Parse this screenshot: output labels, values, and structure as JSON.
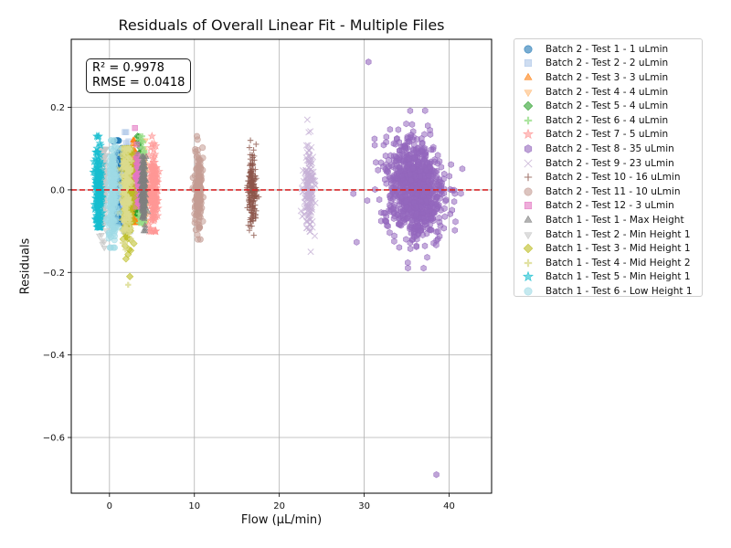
{
  "chart_data": {
    "type": "scatter",
    "title": "Residuals of Overall Linear Fit - Multiple Files",
    "xlabel": "Flow (µL/min)",
    "ylabel": "Residuals",
    "xlim": [
      -4.5,
      45
    ],
    "ylim": [
      -0.735,
      0.365
    ],
    "x_ticks": [
      0,
      10,
      20,
      30,
      40
    ],
    "y_ticks": [
      -0.6,
      -0.4,
      -0.2,
      0.0,
      0.2
    ],
    "y_tick_labels": [
      "−0.6",
      "−0.4",
      "−0.2",
      "0.0",
      "0.2"
    ],
    "grid": true,
    "reference_line": {
      "y": 0.0,
      "color": "#d62728",
      "style": "dashed"
    },
    "annotation": {
      "r2": "R² = 0.9978",
      "rmse": "RMSE = 0.0418"
    },
    "legend_position": "outside-right",
    "series": [
      {
        "name": "Batch 2 - Test 1 - 1 uLmin",
        "color": "#1f77b4",
        "marker": "circle",
        "x_center": 1.0,
        "x_spread": 0.6,
        "y_spread": 0.06,
        "y_min": -0.08,
        "y_max": 0.12
      },
      {
        "name": "Batch 2 - Test 2 - 2 uLmin",
        "color": "#aec7e8",
        "marker": "square",
        "x_center": 2.0,
        "x_spread": 0.6,
        "y_spread": 0.06,
        "y_min": -0.1,
        "y_max": 0.14
      },
      {
        "name": "Batch 2 - Test 3 - 3 uLmin",
        "color": "#ff7f0e",
        "marker": "triangle-up",
        "x_center": 3.0,
        "x_spread": 0.5,
        "y_spread": 0.05,
        "y_min": -0.08,
        "y_max": 0.12
      },
      {
        "name": "Batch 2 - Test 4 - 4 uLmin",
        "color": "#ffbb78",
        "marker": "triangle-down",
        "x_center": 4.0,
        "x_spread": 0.5,
        "y_spread": 0.05,
        "y_min": -0.08,
        "y_max": 0.12
      },
      {
        "name": "Batch 2 - Test 5 - 4 uLmin",
        "color": "#2ca02c",
        "marker": "diamond",
        "x_center": 3.5,
        "x_spread": 0.4,
        "y_spread": 0.05,
        "y_min": -0.06,
        "y_max": 0.13
      },
      {
        "name": "Batch 2 - Test 6 - 4 uLmin",
        "color": "#98df8a",
        "marker": "plus",
        "x_center": 3.8,
        "x_spread": 0.5,
        "y_spread": 0.05,
        "y_min": -0.08,
        "y_max": 0.13
      },
      {
        "name": "Batch 2 - Test 7 - 5 uLmin",
        "color": "#ff9896",
        "marker": "star",
        "x_center": 5.2,
        "x_spread": 0.7,
        "y_spread": 0.05,
        "y_min": -0.1,
        "y_max": 0.13
      },
      {
        "name": "Batch 2 - Test 8 - 35 uLmin",
        "color": "#9467bd",
        "marker": "hexagon",
        "x_center": 36.0,
        "x_spread": 3.2,
        "y_spread": 0.06,
        "y_min": -0.69,
        "y_max": 0.31
      },
      {
        "name": "Batch 2 - Test 9 - 23 uLmin",
        "color": "#c5b0d5",
        "marker": "x",
        "x_center": 23.5,
        "x_spread": 0.9,
        "y_spread": 0.05,
        "y_min": -0.15,
        "y_max": 0.17
      },
      {
        "name": "Batch 2 - Test 10 - 16 uLmin",
        "color": "#8c564b",
        "marker": "thin-plus",
        "x_center": 16.8,
        "x_spread": 0.7,
        "y_spread": 0.04,
        "y_min": -0.11,
        "y_max": 0.12
      },
      {
        "name": "Batch 2 - Test 11 - 10 uLmin",
        "color": "#c49c94",
        "marker": "octagon",
        "x_center": 10.5,
        "x_spread": 0.6,
        "y_spread": 0.05,
        "y_min": -0.12,
        "y_max": 0.13
      },
      {
        "name": "Batch 2 - Test 12 - 3 uLmin",
        "color": "#e377c2",
        "marker": "square",
        "x_center": 3.2,
        "x_spread": 0.3,
        "y_spread": 0.04,
        "y_min": -0.04,
        "y_max": 0.15
      },
      {
        "name": "Batch 1 - Test 1 - Max Height",
        "color": "#7f7f7f",
        "marker": "triangle-up",
        "x_center": 4.0,
        "x_spread": 0.4,
        "y_spread": 0.04,
        "y_min": -0.1,
        "y_max": 0.08
      },
      {
        "name": "Batch 1 - Test 2 - Min Height 1",
        "color": "#c7c7c7",
        "marker": "triangle-down",
        "x_center": -0.8,
        "x_spread": 0.6,
        "y_spread": 0.06,
        "y_min": -0.14,
        "y_max": 0.1
      },
      {
        "name": "Batch 1 - Test 3 - Mid Height 1",
        "color": "#bcbd22",
        "marker": "diamond",
        "x_center": 2.2,
        "x_spread": 0.9,
        "y_spread": 0.06,
        "y_min": -0.21,
        "y_max": 0.1
      },
      {
        "name": "Batch 1 - Test 4 - Mid Height 2",
        "color": "#dbdb8d",
        "marker": "plus",
        "x_center": 2.0,
        "x_spread": 1.0,
        "y_spread": 0.06,
        "y_min": -0.23,
        "y_max": 0.1
      },
      {
        "name": "Batch 1 - Test 5 - Min Height 1",
        "color": "#17becf",
        "marker": "star",
        "x_center": -1.3,
        "x_spread": 0.6,
        "y_spread": 0.05,
        "y_min": -0.09,
        "y_max": 0.13
      },
      {
        "name": "Batch 1 - Test 6 - Low Height 1",
        "color": "#9edae5",
        "marker": "circle",
        "x_center": 0.4,
        "x_spread": 0.8,
        "y_spread": 0.06,
        "y_min": -0.14,
        "y_max": 0.12
      }
    ]
  }
}
